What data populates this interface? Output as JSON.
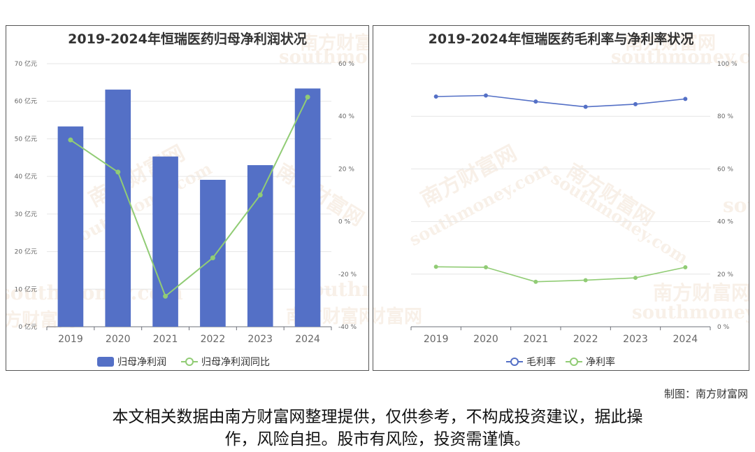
{
  "chart_data": [
    {
      "type": "bar",
      "title": "2019-2024年恒瑞医药归母净利润状况",
      "categories": [
        "2019",
        "2020",
        "2021",
        "2022",
        "2023",
        "2024"
      ],
      "series": [
        {
          "name": "归母净利润",
          "type": "bar",
          "axis": "left",
          "values": [
            53.3,
            63.1,
            45.3,
            39.1,
            43.0,
            63.4
          ],
          "color": "#5470c6"
        },
        {
          "name": "归母净利润同比",
          "type": "line",
          "axis": "right",
          "values": [
            31.0,
            18.8,
            -28.4,
            -13.8,
            10.1,
            47.3
          ],
          "color": "#91cc75"
        }
      ],
      "y_left": {
        "min": 0,
        "max": 70,
        "ticks": [
          "0 亿元",
          "10 亿元",
          "20 亿元",
          "30 亿元",
          "40 亿元",
          "50 亿元",
          "60 亿元",
          "70 亿元"
        ]
      },
      "y_right": {
        "min": -40,
        "max": 60,
        "ticks": [
          "-40 %",
          "-20 %",
          "0 %",
          "20 %",
          "40 %",
          "60 %"
        ]
      },
      "grid": true,
      "legend": "bottom"
    },
    {
      "type": "line",
      "title": "2019-2024年恒瑞医药毛利率与净利率状况",
      "categories": [
        "2019",
        "2020",
        "2021",
        "2022",
        "2023",
        "2024"
      ],
      "series": [
        {
          "name": "毛利率",
          "values": [
            87.5,
            87.9,
            85.6,
            83.6,
            84.6,
            86.6
          ],
          "color": "#5470c6"
        },
        {
          "name": "净利率",
          "values": [
            22.8,
            22.6,
            17.1,
            17.7,
            18.6,
            22.6
          ],
          "color": "#91cc75"
        }
      ],
      "y_right": {
        "min": 0,
        "max": 100,
        "ticks": [
          "0 %",
          "20 %",
          "40 %",
          "60 %",
          "80 %",
          "100 %"
        ]
      },
      "grid": true,
      "legend": "bottom"
    }
  ],
  "watermark": {
    "cn": "南方财富网",
    "en": "southmoney.com"
  },
  "credit": "制图：南方财富网",
  "disclaimer_line1": "本文相关数据由南方财富网整理提供，仅供参考，不构成投资建议，据此操",
  "disclaimer_line2": "作，风险自担。股市有风险，投资需谨慎。"
}
